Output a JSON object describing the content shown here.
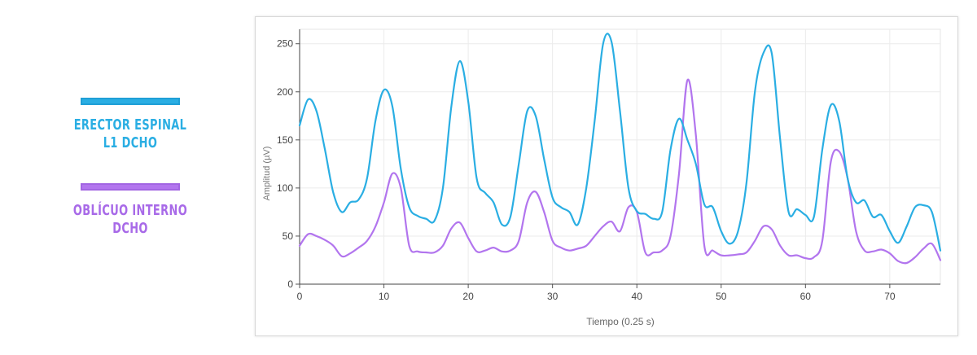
{
  "legend": [
    {
      "line1": "ERECTOR ESPINAL",
      "line2": "L1 DCHO",
      "color": "#2aaee3"
    },
    {
      "line1": "OBLÍCUO INTERNO",
      "line2": "DCHO",
      "color": "#b275ee"
    }
  ],
  "chart_data": {
    "type": "line",
    "title": "",
    "xlabel": "Tiempo (0.25 s)",
    "ylabel": "Amplitud (µV)",
    "xlim": [
      0,
      76
    ],
    "ylim": [
      0,
      265
    ],
    "x_ticks": [
      0,
      10,
      20,
      30,
      40,
      50,
      60,
      70
    ],
    "y_ticks": [
      0,
      50,
      100,
      150,
      200,
      250
    ],
    "grid": true,
    "series": [
      {
        "name": "ERECTOR ESPINAL L1 DCHO",
        "color": "#2aaee3",
        "x": [
          0,
          1,
          2,
          3,
          4,
          5,
          6,
          7,
          8,
          9,
          10,
          11,
          12,
          13,
          14,
          15,
          16,
          17,
          18,
          19,
          20,
          21,
          22,
          23,
          24,
          25,
          26,
          27,
          28,
          29,
          30,
          31,
          32,
          33,
          34,
          35,
          36,
          37,
          38,
          39,
          40,
          41,
          42,
          43,
          44,
          45,
          46,
          47,
          48,
          49,
          50,
          51,
          52,
          53,
          54,
          55,
          56,
          57,
          58,
          59,
          60,
          61,
          62,
          63,
          64,
          65,
          66,
          67,
          68,
          69,
          70,
          71,
          72,
          73,
          74,
          75,
          76
        ],
        "y": [
          165,
          192,
          180,
          140,
          95,
          75,
          85,
          88,
          110,
          170,
          202,
          185,
          120,
          80,
          71,
          68,
          66,
          100,
          185,
          232,
          190,
          110,
          95,
          85,
          62,
          70,
          125,
          180,
          175,
          130,
          90,
          80,
          75,
          62,
          100,
          170,
          250,
          252,
          180,
          100,
          76,
          73,
          68,
          75,
          140,
          172,
          150,
          125,
          83,
          80,
          55,
          42,
          55,
          105,
          200,
          240,
          240,
          150,
          75,
          78,
          72,
          70,
          140,
          186,
          170,
          110,
          85,
          87,
          70,
          72,
          55,
          43,
          60,
          80,
          82,
          75,
          35
        ]
      },
      {
        "name": "OBLÍCUO INTERNO DCHO",
        "color": "#b275ee",
        "x": [
          0,
          1,
          2,
          3,
          4,
          5,
          6,
          7,
          8,
          9,
          10,
          11,
          12,
          13,
          14,
          15,
          16,
          17,
          18,
          19,
          20,
          21,
          22,
          23,
          24,
          25,
          26,
          27,
          28,
          29,
          30,
          31,
          32,
          33,
          34,
          35,
          36,
          37,
          38,
          39,
          40,
          41,
          42,
          43,
          44,
          45,
          46,
          47,
          48,
          49,
          50,
          51,
          52,
          53,
          54,
          55,
          56,
          57,
          58,
          59,
          60,
          61,
          62,
          63,
          64,
          65,
          66,
          67,
          68,
          69,
          70,
          71,
          72,
          73,
          74,
          75,
          76
        ],
        "y": [
          40,
          52,
          50,
          46,
          40,
          29,
          32,
          38,
          45,
          60,
          85,
          115,
          100,
          40,
          34,
          33,
          33,
          40,
          58,
          64,
          48,
          34,
          35,
          38,
          34,
          35,
          45,
          85,
          96,
          75,
          45,
          38,
          35,
          37,
          40,
          50,
          60,
          65,
          55,
          80,
          75,
          33,
          33,
          35,
          50,
          115,
          212,
          155,
          40,
          35,
          30,
          30,
          31,
          33,
          45,
          60,
          57,
          40,
          30,
          30,
          27,
          28,
          45,
          127,
          138,
          110,
          55,
          35,
          34,
          36,
          32,
          24,
          22,
          28,
          37,
          42,
          25
        ]
      }
    ]
  }
}
